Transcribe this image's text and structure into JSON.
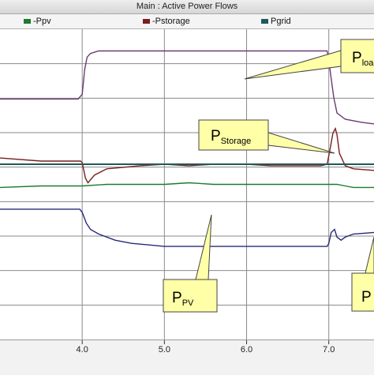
{
  "window": {
    "title": "Main : Active Power Flows"
  },
  "legend": [
    {
      "label": "-Ppv",
      "color": "#1e7a2e"
    },
    {
      "label": "-Pstorage",
      "color": "#7a1e1e"
    },
    {
      "label": "Pgrid",
      "color": "#1e5a5a"
    }
  ],
  "annotations": [
    {
      "id": "pload",
      "main": "P",
      "sub": "load"
    },
    {
      "id": "pstorage",
      "main": "P",
      "sub": "Storage"
    },
    {
      "id": "ppv",
      "main": "P",
      "sub": "PV"
    },
    {
      "id": "pgrid",
      "main": "P",
      "sub": ""
    }
  ],
  "chart_data": {
    "type": "line",
    "title": "Main : Active Power Flows",
    "xlabel": "",
    "ylabel": "",
    "xlim": [
      3.0,
      7.55
    ],
    "ylim": [
      0,
      1
    ],
    "xticks": [
      4.0,
      5.0,
      6.0,
      7.0
    ],
    "xtick_labels": [
      "4.0",
      "5.0",
      "6.0",
      "7.0"
    ],
    "grid": true,
    "legend_position": "top",
    "series": [
      {
        "name": "",
        "color": "#6b3a72",
        "x": [
          3.0,
          3.95,
          4.0,
          4.03,
          4.06,
          4.1,
          4.2,
          4.5,
          5.0,
          5.5,
          6.0,
          6.5,
          6.9,
          6.98,
          7.0,
          7.03,
          7.06,
          7.1,
          7.2,
          7.4,
          7.55
        ],
        "y": [
          0.775,
          0.775,
          0.79,
          0.87,
          0.91,
          0.922,
          0.93,
          0.93,
          0.93,
          0.93,
          0.93,
          0.93,
          0.93,
          0.93,
          0.9,
          0.84,
          0.78,
          0.73,
          0.71,
          0.7,
          0.695
        ]
      },
      {
        "name": "-Pstorage",
        "color": "#7a1e1e",
        "x": [
          3.0,
          3.5,
          3.9,
          3.98,
          4.0,
          4.04,
          4.07,
          4.15,
          4.3,
          4.5,
          4.7,
          5.0,
          5.3,
          5.6,
          6.0,
          6.3,
          6.6,
          6.9,
          6.98,
          7.02,
          7.05,
          7.08,
          7.1,
          7.13,
          7.2,
          7.3,
          7.55
        ],
        "y": [
          0.585,
          0.575,
          0.575,
          0.575,
          0.57,
          0.52,
          0.505,
          0.53,
          0.55,
          0.555,
          0.56,
          0.565,
          0.56,
          0.565,
          0.565,
          0.56,
          0.56,
          0.56,
          0.565,
          0.62,
          0.665,
          0.68,
          0.66,
          0.6,
          0.56,
          0.55,
          0.545
        ]
      },
      {
        "name": "Pgrid",
        "color": "#1e5a5a",
        "x": [
          3.0,
          7.55
        ],
        "y": [
          0.565,
          0.565
        ]
      },
      {
        "name": "-Ppv",
        "color": "#1e7a2e",
        "x": [
          3.0,
          3.5,
          4.0,
          4.3,
          4.6,
          5.0,
          5.3,
          5.6,
          6.0,
          6.3,
          6.6,
          7.0,
          7.1,
          7.2,
          7.3,
          7.55
        ],
        "y": [
          0.49,
          0.495,
          0.495,
          0.5,
          0.5,
          0.5,
          0.505,
          0.5,
          0.5,
          0.5,
          0.5,
          0.5,
          0.5,
          0.495,
          0.49,
          0.49
        ]
      },
      {
        "name": "",
        "color": "#2a2a7a",
        "x": [
          3.0,
          3.6,
          3.97,
          4.0,
          4.05,
          4.1,
          4.2,
          4.4,
          4.6,
          4.8,
          5.0,
          5.2,
          5.5,
          6.0,
          6.5,
          6.98,
          7.0,
          7.03,
          7.07,
          7.1,
          7.15,
          7.2,
          7.3,
          7.55
        ],
        "y": [
          0.42,
          0.42,
          0.42,
          0.41,
          0.375,
          0.355,
          0.34,
          0.32,
          0.31,
          0.305,
          0.3,
          0.3,
          0.3,
          0.3,
          0.3,
          0.3,
          0.31,
          0.345,
          0.355,
          0.33,
          0.32,
          0.33,
          0.34,
          0.345
        ]
      }
    ]
  }
}
